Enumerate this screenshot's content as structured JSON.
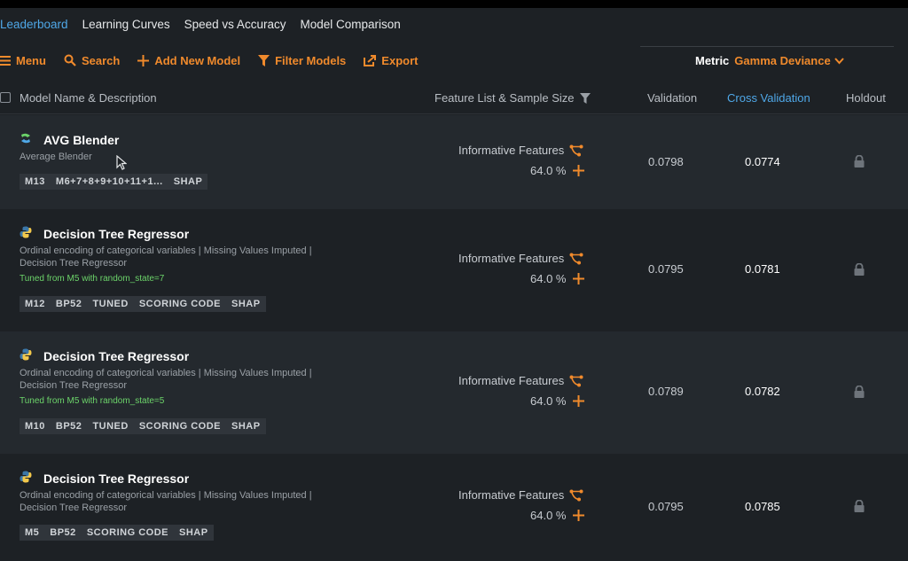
{
  "tabs": [
    {
      "label": "Leaderboard",
      "active": true
    },
    {
      "label": "Learning Curves"
    },
    {
      "label": "Speed vs Accuracy"
    },
    {
      "label": "Model Comparison"
    }
  ],
  "toolbar": {
    "menu_label": "Menu",
    "search_label": "Search",
    "add_label": "Add New Model",
    "filter_label": "Filter Models",
    "export_label": "Export"
  },
  "metric": {
    "label": "Metric",
    "value": "Gamma Deviance"
  },
  "columns": {
    "name": "Model Name & Description",
    "features": "Feature List & Sample Size",
    "validation": "Validation",
    "cross_validation": "Cross Validation",
    "holdout": "Holdout"
  },
  "colors": {
    "accent": "#f08a2c",
    "link": "#4fa8e8",
    "tuned": "#6cd46a"
  },
  "models": [
    {
      "icon": "blender-icon",
      "title": "AVG Blender",
      "desc": "Average Blender",
      "tuned": "",
      "badges": [
        "M13",
        "M6+7+8+9+10+11+1...",
        "SHAP"
      ],
      "feature_list": "Informative Features",
      "sample": "64.0 %",
      "validation": "0.0798",
      "cross_validation": "0.0774"
    },
    {
      "icon": "python-icon",
      "title": "Decision Tree Regressor",
      "desc": "Ordinal encoding of categorical variables | Missing Values Imputed | Decision Tree Regressor",
      "tuned": "Tuned from M5 with random_state=7",
      "badges": [
        "M12",
        "BP52",
        "TUNED",
        "SCORING CODE",
        "SHAP"
      ],
      "feature_list": "Informative Features",
      "sample": "64.0 %",
      "validation": "0.0795",
      "cross_validation": "0.0781"
    },
    {
      "icon": "python-icon",
      "title": "Decision Tree Regressor",
      "desc": "Ordinal encoding of categorical variables | Missing Values Imputed | Decision Tree Regressor",
      "tuned": "Tuned from M5 with random_state=5",
      "badges": [
        "M10",
        "BP52",
        "TUNED",
        "SCORING CODE",
        "SHAP"
      ],
      "feature_list": "Informative Features",
      "sample": "64.0 %",
      "validation": "0.0789",
      "cross_validation": "0.0782"
    },
    {
      "icon": "python-icon",
      "title": "Decision Tree Regressor",
      "desc": "Ordinal encoding of categorical variables | Missing Values Imputed | Decision Tree Regressor",
      "tuned": "",
      "badges": [
        "M5",
        "BP52",
        "SCORING CODE",
        "SHAP"
      ],
      "feature_list": "Informative Features",
      "sample": "64.0 %",
      "validation": "0.0795",
      "cross_validation": "0.0785"
    }
  ]
}
